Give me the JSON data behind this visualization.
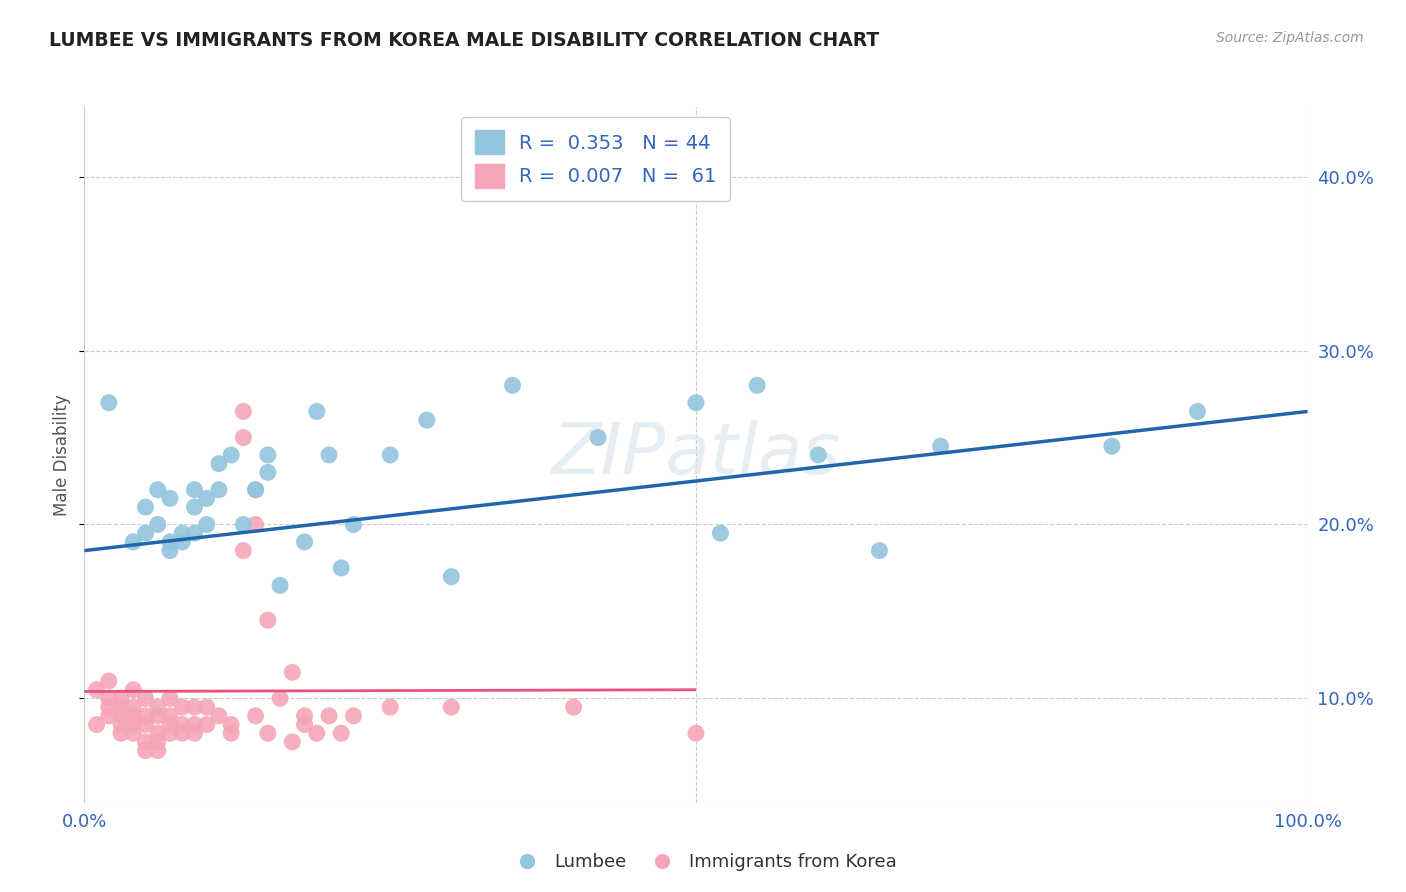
{
  "title": "LUMBEE VS IMMIGRANTS FROM KOREA MALE DISABILITY CORRELATION CHART",
  "source": "Source: ZipAtlas.com",
  "xlabel": "",
  "ylabel": "Male Disability",
  "legend_labels": [
    "Lumbee",
    "Immigrants from Korea"
  ],
  "lumbee_R": 0.353,
  "lumbee_N": 44,
  "korea_R": 0.007,
  "korea_N": 61,
  "xlim": [
    0,
    1.0
  ],
  "ylim": [
    0.04,
    0.44
  ],
  "xtick_vals": [
    0.0,
    0.5,
    1.0
  ],
  "xtick_labels": [
    "0.0%",
    "",
    "100.0%"
  ],
  "ytick_vals": [
    0.1,
    0.2,
    0.3,
    0.4
  ],
  "ytick_labels": [
    "10.0%",
    "20.0%",
    "30.0%",
    "40.0%"
  ],
  "lumbee_color": "#92c5de",
  "korea_color": "#f4a6b8",
  "lumbee_line_color": "#2166ac",
  "korea_line_color": "#e8527a",
  "background_color": "#ffffff",
  "watermark": "ZIPatlas",
  "lumbee_x": [
    0.02,
    0.04,
    0.05,
    0.05,
    0.06,
    0.06,
    0.07,
    0.07,
    0.07,
    0.08,
    0.08,
    0.09,
    0.09,
    0.09,
    0.1,
    0.1,
    0.11,
    0.11,
    0.12,
    0.13,
    0.14,
    0.14,
    0.15,
    0.15,
    0.16,
    0.18,
    0.19,
    0.2,
    0.21,
    0.22,
    0.25,
    0.28,
    0.3,
    0.35,
    0.42,
    0.45,
    0.5,
    0.52,
    0.55,
    0.6,
    0.65,
    0.7,
    0.84,
    0.91
  ],
  "lumbee_y": [
    0.27,
    0.19,
    0.21,
    0.195,
    0.22,
    0.2,
    0.19,
    0.185,
    0.215,
    0.195,
    0.19,
    0.21,
    0.22,
    0.195,
    0.2,
    0.215,
    0.22,
    0.235,
    0.24,
    0.2,
    0.22,
    0.22,
    0.23,
    0.24,
    0.165,
    0.19,
    0.265,
    0.24,
    0.175,
    0.2,
    0.24,
    0.26,
    0.17,
    0.28,
    0.25,
    0.415,
    0.27,
    0.195,
    0.28,
    0.24,
    0.185,
    0.245,
    0.245,
    0.265
  ],
  "korea_x": [
    0.01,
    0.01,
    0.02,
    0.02,
    0.02,
    0.02,
    0.03,
    0.03,
    0.03,
    0.03,
    0.03,
    0.04,
    0.04,
    0.04,
    0.04,
    0.04,
    0.05,
    0.05,
    0.05,
    0.05,
    0.05,
    0.06,
    0.06,
    0.06,
    0.06,
    0.06,
    0.07,
    0.07,
    0.07,
    0.07,
    0.08,
    0.08,
    0.08,
    0.09,
    0.09,
    0.09,
    0.1,
    0.1,
    0.11,
    0.12,
    0.12,
    0.13,
    0.13,
    0.13,
    0.14,
    0.14,
    0.15,
    0.15,
    0.16,
    0.17,
    0.17,
    0.18,
    0.18,
    0.19,
    0.2,
    0.21,
    0.22,
    0.25,
    0.3,
    0.4,
    0.5
  ],
  "korea_y": [
    0.105,
    0.085,
    0.11,
    0.095,
    0.1,
    0.09,
    0.1,
    0.09,
    0.095,
    0.085,
    0.08,
    0.105,
    0.095,
    0.085,
    0.09,
    0.08,
    0.1,
    0.09,
    0.085,
    0.075,
    0.07,
    0.095,
    0.09,
    0.08,
    0.075,
    0.07,
    0.1,
    0.09,
    0.085,
    0.08,
    0.095,
    0.085,
    0.08,
    0.095,
    0.085,
    0.08,
    0.095,
    0.085,
    0.09,
    0.085,
    0.08,
    0.185,
    0.25,
    0.265,
    0.2,
    0.09,
    0.145,
    0.08,
    0.1,
    0.115,
    0.075,
    0.085,
    0.09,
    0.08,
    0.09,
    0.08,
    0.09,
    0.095,
    0.095,
    0.095,
    0.08
  ],
  "lumbee_line_x": [
    0.0,
    1.0
  ],
  "lumbee_line_y": [
    0.185,
    0.265
  ],
  "korea_line_x": [
    0.0,
    0.5
  ],
  "korea_line_y": [
    0.104,
    0.105
  ]
}
